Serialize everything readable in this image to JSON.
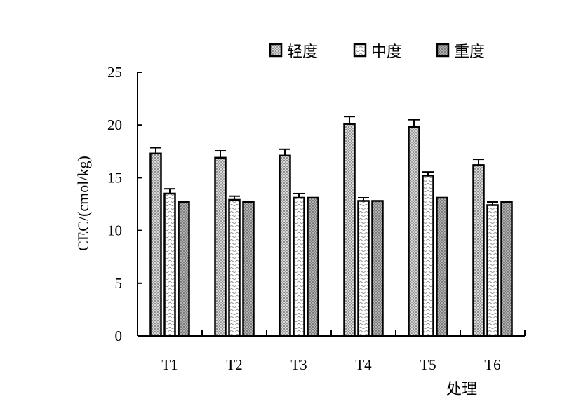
{
  "chart_data": {
    "type": "bar",
    "xlabel": "处理",
    "ylabel": "CEC/(cmol/kg)",
    "ylim": [
      0,
      25
    ],
    "yticks": [
      0,
      5,
      10,
      15,
      20,
      25
    ],
    "grid": false,
    "legend_position": "top-right",
    "categories": [
      "T1",
      "T2",
      "T3",
      "T4",
      "T5",
      "T6"
    ],
    "series": [
      {
        "name": "轻度",
        "pattern": "dots",
        "values": [
          17.3,
          16.9,
          17.1,
          20.1,
          19.8,
          16.2
        ],
        "errors": [
          0.55,
          0.65,
          0.6,
          0.7,
          0.7,
          0.55
        ]
      },
      {
        "name": "中度",
        "pattern": "waves",
        "values": [
          13.5,
          12.9,
          13.1,
          12.8,
          15.2,
          12.4
        ],
        "errors": [
          0.45,
          0.35,
          0.4,
          0.3,
          0.35,
          0.3
        ]
      },
      {
        "name": "重度",
        "pattern": "crosshatch",
        "values": [
          12.7,
          12.7,
          13.1,
          12.8,
          13.1,
          12.7
        ],
        "errors": [
          0,
          0,
          0,
          0,
          0,
          0
        ]
      }
    ]
  }
}
